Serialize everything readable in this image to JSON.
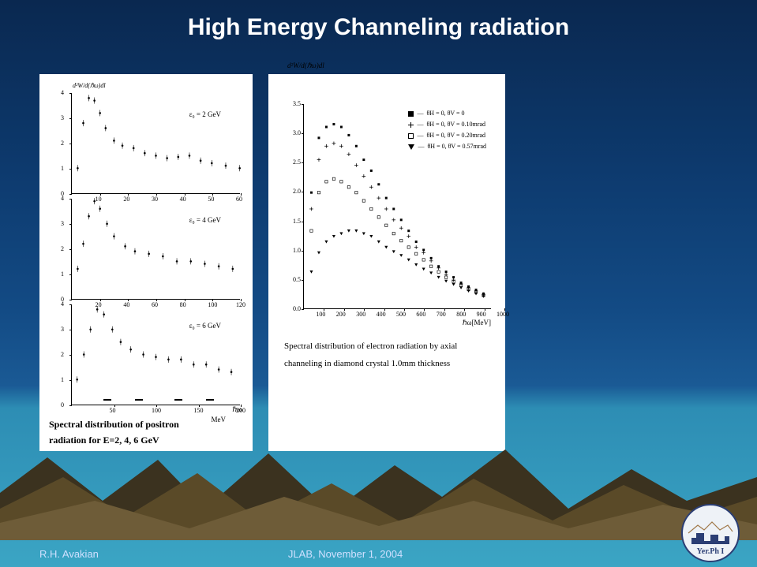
{
  "title": "High Energy Channeling radiation",
  "footer": {
    "author": "R.H. Avakian",
    "venue_date": "JLAB, November 1, 2004"
  },
  "logo": {
    "text": "Yer.Ph I",
    "border_color": "#2b3e74",
    "bg": "#eef2f7"
  },
  "left_panel": {
    "y_axis_label": "d²W/d(ℏω)dl",
    "x_axis_unit": "MeV",
    "x_axis_var": "ℏω",
    "caption_line1": "Spectral distribution of positron",
    "caption_line2": "radiation for E=2, 4, 6 GeV",
    "subplots": [
      {
        "energy_label": "ε₀ = 2 GeV",
        "xlim": [
          0,
          60
        ],
        "xtick_step": 10,
        "ylim": [
          0,
          4
        ],
        "ytick_step": 1,
        "curve": [
          [
            2,
            1.0
          ],
          [
            4,
            2.8
          ],
          [
            6,
            3.8
          ],
          [
            8,
            3.7
          ],
          [
            10,
            3.2
          ],
          [
            12,
            2.6
          ],
          [
            15,
            2.1
          ],
          [
            18,
            1.9
          ],
          [
            22,
            1.8
          ],
          [
            26,
            1.6
          ],
          [
            30,
            1.5
          ],
          [
            34,
            1.4
          ],
          [
            38,
            1.45
          ],
          [
            42,
            1.5
          ],
          [
            46,
            1.3
          ],
          [
            50,
            1.2
          ],
          [
            55,
            1.1
          ],
          [
            60,
            1.0
          ]
        ]
      },
      {
        "energy_label": "ε₀ = 4 GeV",
        "xlim": [
          0,
          120
        ],
        "xtick_step": 20,
        "ylim": [
          0,
          4
        ],
        "ytick_step": 1,
        "curve": [
          [
            4,
            1.2
          ],
          [
            8,
            2.2
          ],
          [
            12,
            3.3
          ],
          [
            16,
            3.9
          ],
          [
            20,
            3.6
          ],
          [
            25,
            3.0
          ],
          [
            30,
            2.5
          ],
          [
            38,
            2.1
          ],
          [
            45,
            1.9
          ],
          [
            55,
            1.8
          ],
          [
            65,
            1.7
          ],
          [
            75,
            1.5
          ],
          [
            85,
            1.5
          ],
          [
            95,
            1.4
          ],
          [
            105,
            1.3
          ],
          [
            115,
            1.2
          ]
        ]
      },
      {
        "energy_label": "ε₀ = 6 GeV",
        "xlim": [
          0,
          200
        ],
        "xtick_step": 50,
        "ylim": [
          0,
          4
        ],
        "ytick_step": 1,
        "curve": [
          [
            6,
            1.0
          ],
          [
            14,
            2.0
          ],
          [
            22,
            3.0
          ],
          [
            30,
            3.8
          ],
          [
            38,
            3.6
          ],
          [
            48,
            3.0
          ],
          [
            58,
            2.5
          ],
          [
            70,
            2.2
          ],
          [
            85,
            2.0
          ],
          [
            100,
            1.9
          ],
          [
            115,
            1.8
          ],
          [
            130,
            1.8
          ],
          [
            145,
            1.6
          ],
          [
            160,
            1.6
          ],
          [
            175,
            1.4
          ],
          [
            190,
            1.3
          ]
        ]
      }
    ]
  },
  "right_panel": {
    "y_axis_label": "d²W/d(ℏω)dl",
    "x_axis_label": "ℏω[MeV]",
    "xlim": [
      0,
      1000
    ],
    "xtick_step": 100,
    "ylim": [
      0,
      3.5
    ],
    "ytick_step": 0.5,
    "legend": [
      {
        "marker": "filled_square",
        "text": "θH = 0,   θV = 0"
      },
      {
        "marker": "plus",
        "text": "θH = 0,   θV = 0.10mrad"
      },
      {
        "marker": "open_square",
        "text": "θH = 0,   θV = 0.20mrad"
      },
      {
        "marker": "down_triangle",
        "text": "θH = 0,   θV = 0.57mrad"
      }
    ],
    "series": {
      "s1": [
        [
          40,
          2.0
        ],
        [
          80,
          3.0
        ],
        [
          120,
          3.2
        ],
        [
          160,
          3.25
        ],
        [
          200,
          3.2
        ],
        [
          240,
          3.05
        ],
        [
          280,
          2.85
        ],
        [
          320,
          2.6
        ],
        [
          360,
          2.4
        ],
        [
          400,
          2.15
        ],
        [
          440,
          1.9
        ],
        [
          480,
          1.7
        ],
        [
          520,
          1.5
        ],
        [
          560,
          1.3
        ],
        [
          600,
          1.1
        ],
        [
          640,
          0.95
        ],
        [
          680,
          0.8
        ],
        [
          720,
          0.65
        ],
        [
          760,
          0.55
        ],
        [
          800,
          0.45
        ],
        [
          840,
          0.35
        ],
        [
          880,
          0.28
        ],
        [
          920,
          0.22
        ],
        [
          960,
          0.15
        ]
      ],
      "s2": [
        [
          40,
          1.7
        ],
        [
          80,
          2.6
        ],
        [
          120,
          2.85
        ],
        [
          160,
          2.9
        ],
        [
          200,
          2.85
        ],
        [
          240,
          2.7
        ],
        [
          280,
          2.5
        ],
        [
          320,
          2.3
        ],
        [
          360,
          2.1
        ],
        [
          400,
          1.9
        ],
        [
          440,
          1.7
        ],
        [
          480,
          1.5
        ],
        [
          520,
          1.35
        ],
        [
          560,
          1.2
        ],
        [
          600,
          1.0
        ],
        [
          640,
          0.9
        ],
        [
          680,
          0.75
        ],
        [
          720,
          0.62
        ],
        [
          760,
          0.5
        ],
        [
          800,
          0.4
        ],
        [
          840,
          0.33
        ],
        [
          880,
          0.26
        ],
        [
          920,
          0.2
        ],
        [
          960,
          0.14
        ]
      ],
      "s3": [
        [
          40,
          1.3
        ],
        [
          80,
          2.0
        ],
        [
          120,
          2.2
        ],
        [
          160,
          2.25
        ],
        [
          200,
          2.2
        ],
        [
          240,
          2.1
        ],
        [
          280,
          2.0
        ],
        [
          320,
          1.85
        ],
        [
          360,
          1.7
        ],
        [
          400,
          1.55
        ],
        [
          440,
          1.4
        ],
        [
          480,
          1.25
        ],
        [
          520,
          1.12
        ],
        [
          560,
          1.0
        ],
        [
          600,
          0.88
        ],
        [
          640,
          0.77
        ],
        [
          680,
          0.65
        ],
        [
          720,
          0.55
        ],
        [
          760,
          0.45
        ],
        [
          800,
          0.37
        ],
        [
          840,
          0.3
        ],
        [
          880,
          0.23
        ],
        [
          920,
          0.18
        ],
        [
          960,
          0.12
        ]
      ],
      "s4": [
        [
          40,
          0.55
        ],
        [
          80,
          0.9
        ],
        [
          120,
          1.1
        ],
        [
          160,
          1.2
        ],
        [
          200,
          1.25
        ],
        [
          240,
          1.3
        ],
        [
          280,
          1.3
        ],
        [
          320,
          1.25
        ],
        [
          360,
          1.2
        ],
        [
          400,
          1.1
        ],
        [
          440,
          1.0
        ],
        [
          480,
          0.92
        ],
        [
          520,
          0.85
        ],
        [
          560,
          0.77
        ],
        [
          600,
          0.68
        ],
        [
          640,
          0.6
        ],
        [
          680,
          0.53
        ],
        [
          720,
          0.45
        ],
        [
          760,
          0.38
        ],
        [
          800,
          0.32
        ],
        [
          840,
          0.26
        ],
        [
          880,
          0.2
        ],
        [
          920,
          0.15
        ],
        [
          960,
          0.1
        ]
      ]
    },
    "caption_line1": "Spectral distribution of electron radiation by axial",
    "caption_line2": "channeling in diamond crystal 1.0mm thickness"
  },
  "colors": {
    "text_white": "#ffffff",
    "figure_bg": "#ffffff",
    "axis": "#000000",
    "mountain_dark": "#3b321f",
    "mountain_mid": "#5a4a28",
    "mountain_light": "#6e5c38"
  }
}
